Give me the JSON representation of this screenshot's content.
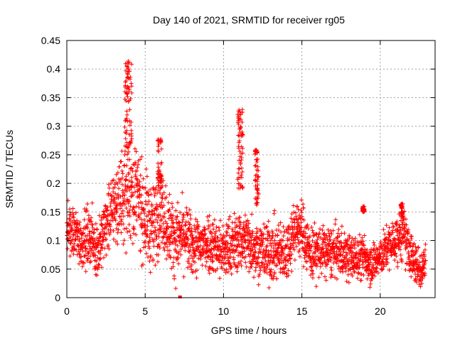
{
  "chart_data": {
    "type": "scatter",
    "title": "Day 140 of 2021, SRMTID for receiver rg05",
    "xlabel": "GPS time / hours",
    "ylabel": "SRMTID / TECUs",
    "xlim": [
      0,
      23.5
    ],
    "ylim": [
      0,
      0.45
    ],
    "grid": true,
    "marker": "+",
    "series_color": "#ff0000",
    "x_ticks": [
      {
        "value": 0,
        "label": "0"
      },
      {
        "value": 5,
        "label": "5"
      },
      {
        "value": 10,
        "label": "10"
      },
      {
        "value": 15,
        "label": "15"
      },
      {
        "value": 20,
        "label": "20"
      }
    ],
    "y_ticks": [
      {
        "value": 0,
        "label": "0"
      },
      {
        "value": 0.05,
        "label": "0.05"
      },
      {
        "value": 0.1,
        "label": "0.1"
      },
      {
        "value": 0.15,
        "label": "0.15"
      },
      {
        "value": 0.2,
        "label": "0.2"
      },
      {
        "value": 0.25,
        "label": "0.25"
      },
      {
        "value": 0.3,
        "label": "0.3"
      },
      {
        "value": 0.35,
        "label": "0.35"
      },
      {
        "value": 0.4,
        "label": "0.4"
      },
      {
        "value": 0.45,
        "label": "0.45"
      }
    ],
    "series": [
      {
        "name": "SRMTID",
        "trend": [
          [
            0.0,
            0.12
          ],
          [
            0.5,
            0.11
          ],
          [
            1.0,
            0.1
          ],
          [
            1.5,
            0.11
          ],
          [
            2.0,
            0.08
          ],
          [
            2.5,
            0.13
          ],
          [
            3.0,
            0.16
          ],
          [
            3.5,
            0.17
          ],
          [
            4.0,
            0.19
          ],
          [
            4.5,
            0.18
          ],
          [
            5.0,
            0.14
          ],
          [
            5.5,
            0.12
          ],
          [
            6.0,
            0.16
          ],
          [
            6.5,
            0.12
          ],
          [
            7.0,
            0.1
          ],
          [
            7.5,
            0.11
          ],
          [
            8.0,
            0.09
          ],
          [
            8.5,
            0.09
          ],
          [
            9.0,
            0.1
          ],
          [
            9.5,
            0.09
          ],
          [
            10.0,
            0.08
          ],
          [
            10.5,
            0.09
          ],
          [
            11.0,
            0.1
          ],
          [
            11.5,
            0.1
          ],
          [
            12.0,
            0.09
          ],
          [
            12.5,
            0.08
          ],
          [
            13.0,
            0.08
          ],
          [
            13.5,
            0.08
          ],
          [
            14.0,
            0.08
          ],
          [
            14.5,
            0.12
          ],
          [
            15.0,
            0.12
          ],
          [
            15.5,
            0.08
          ],
          [
            16.0,
            0.08
          ],
          [
            16.5,
            0.08
          ],
          [
            17.0,
            0.08
          ],
          [
            17.5,
            0.08
          ],
          [
            18.0,
            0.07
          ],
          [
            18.5,
            0.07
          ],
          [
            19.0,
            0.07
          ],
          [
            19.5,
            0.06
          ],
          [
            20.0,
            0.07
          ],
          [
            20.5,
            0.09
          ],
          [
            21.0,
            0.1
          ],
          [
            21.5,
            0.11
          ],
          [
            22.0,
            0.07
          ],
          [
            22.5,
            0.05
          ],
          [
            22.9,
            0.06
          ]
        ],
        "spread": [
          [
            0.0,
            0.025
          ],
          [
            2.5,
            0.03
          ],
          [
            4.0,
            0.05
          ],
          [
            6.0,
            0.04
          ],
          [
            8.0,
            0.03
          ],
          [
            10.0,
            0.03
          ],
          [
            12.0,
            0.03
          ],
          [
            14.5,
            0.03
          ],
          [
            17.0,
            0.025
          ],
          [
            20.0,
            0.02
          ],
          [
            21.5,
            0.025
          ],
          [
            22.9,
            0.02
          ]
        ],
        "bursts": [
          {
            "x_start": 3.7,
            "x_end": 4.15,
            "y_min": 0.25,
            "y_max": 0.42
          },
          {
            "x_start": 5.8,
            "x_end": 6.05,
            "y_min": 0.19,
            "y_max": 0.28
          },
          {
            "x_start": 10.9,
            "x_end": 11.25,
            "y_min": 0.19,
            "y_max": 0.33
          },
          {
            "x_start": 12.0,
            "x_end": 12.25,
            "y_min": 0.16,
            "y_max": 0.26
          },
          {
            "x_start": 18.85,
            "x_end": 19.0,
            "y_min": 0.15,
            "y_max": 0.16
          },
          {
            "x_start": 21.3,
            "x_end": 21.45,
            "y_min": 0.14,
            "y_max": 0.165
          }
        ],
        "x_range": [
          0,
          22.9
        ],
        "approx_point_count": 2600,
        "isolated_points": [
          [
            7.2,
            0.0
          ]
        ]
      }
    ]
  }
}
